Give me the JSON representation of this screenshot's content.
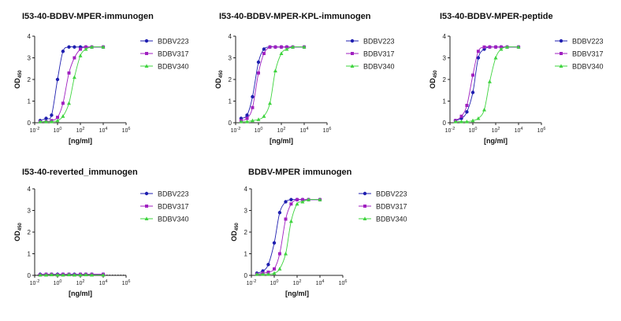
{
  "series_names": [
    "BDBV223",
    "BDBV317",
    "BDBV340"
  ],
  "series_colors": [
    "#1f1fb0",
    "#a020c0",
    "#3fd43f"
  ],
  "chart_data": [
    {
      "type": "line",
      "title": "I53-40-BDBV-MPER-immunogen",
      "xlabel": "[ng/ml]",
      "ylabel": "OD450",
      "xscale": "log",
      "xlim": [
        0.01,
        1000000
      ],
      "ylim": [
        0,
        4
      ],
      "xticks": [
        "10-2",
        "100",
        "102",
        "104",
        "106"
      ],
      "yticks": [
        "0",
        "1",
        "2",
        "3",
        "4"
      ],
      "legend_position": "right",
      "x": [
        0.03,
        0.1,
        0.3,
        1,
        3,
        10,
        30,
        100,
        300,
        1000,
        10000
      ],
      "series": [
        {
          "name": "BDBV223",
          "values": [
            0.1,
            0.2,
            0.35,
            2.0,
            3.3,
            3.5,
            3.5,
            3.5,
            3.5,
            3.5,
            3.5
          ]
        },
        {
          "name": "BDBV317",
          "values": [
            0.05,
            0.05,
            0.1,
            0.25,
            0.9,
            2.3,
            3.0,
            3.4,
            3.5,
            3.5,
            3.5
          ]
        },
        {
          "name": "BDBV340",
          "values": [
            0.05,
            0.05,
            0.05,
            0.1,
            0.3,
            0.9,
            2.1,
            3.1,
            3.4,
            3.5,
            3.5
          ]
        }
      ]
    },
    {
      "type": "line",
      "title": "I53-40-BDBV-MPER-KPL-immunogen",
      "xlabel": "[ng/ml]",
      "ylabel": "OD450",
      "xscale": "log",
      "xlim": [
        0.01,
        1000000
      ],
      "ylim": [
        0,
        4
      ],
      "xticks": [
        "10-2",
        "100",
        "102",
        "104",
        "106"
      ],
      "yticks": [
        "0",
        "1",
        "2",
        "3",
        "4"
      ],
      "legend_position": "right",
      "x": [
        0.03,
        0.1,
        0.3,
        1,
        3,
        10,
        30,
        100,
        300,
        1000,
        10000
      ],
      "series": [
        {
          "name": "BDBV223",
          "values": [
            0.2,
            0.35,
            1.2,
            2.8,
            3.4,
            3.5,
            3.5,
            3.5,
            3.5,
            3.5,
            3.5
          ]
        },
        {
          "name": "BDBV317",
          "values": [
            0.1,
            0.2,
            0.7,
            2.3,
            3.2,
            3.5,
            3.5,
            3.5,
            3.5,
            3.5,
            3.5
          ]
        },
        {
          "name": "BDBV340",
          "values": [
            0.05,
            0.05,
            0.1,
            0.15,
            0.3,
            0.9,
            2.4,
            3.2,
            3.4,
            3.5,
            3.5
          ]
        }
      ]
    },
    {
      "type": "line",
      "title": "I53-40-BDBV-MPER-peptide",
      "xlabel": "[ng/ml]",
      "ylabel": "OD450",
      "xscale": "log",
      "xlim": [
        0.01,
        1000000
      ],
      "ylim": [
        0,
        4
      ],
      "xticks": [
        "10-2",
        "100",
        "102",
        "104",
        "106"
      ],
      "yticks": [
        "0",
        "1",
        "2",
        "3",
        "4"
      ],
      "legend_position": "right",
      "x": [
        0.03,
        0.1,
        0.3,
        1,
        3,
        10,
        30,
        100,
        300,
        1000,
        10000
      ],
      "series": [
        {
          "name": "BDBV223",
          "values": [
            0.1,
            0.2,
            0.5,
            1.4,
            3.0,
            3.4,
            3.5,
            3.5,
            3.5,
            3.5,
            3.5
          ]
        },
        {
          "name": "BDBV317",
          "values": [
            0.1,
            0.3,
            0.8,
            2.2,
            3.3,
            3.5,
            3.5,
            3.5,
            3.5,
            3.5,
            3.5
          ]
        },
        {
          "name": "BDBV340",
          "values": [
            0.05,
            0.05,
            0.05,
            0.1,
            0.2,
            0.6,
            1.9,
            3.0,
            3.4,
            3.5,
            3.5
          ]
        }
      ]
    },
    {
      "type": "line",
      "title": "I53-40-reverted_immunogen",
      "xlabel": "[ng/ml]",
      "ylabel": "OD450",
      "xscale": "log",
      "xlim": [
        0.01,
        1000000
      ],
      "ylim": [
        0,
        4
      ],
      "xticks": [
        "10-2",
        "100",
        "102",
        "104",
        "106"
      ],
      "yticks": [
        "0",
        "1",
        "2",
        "3",
        "4"
      ],
      "legend_position": "right",
      "x": [
        0.03,
        0.1,
        0.3,
        1,
        3,
        10,
        30,
        100,
        300,
        1000,
        10000
      ],
      "series": [
        {
          "name": "BDBV223",
          "values": [
            0.05,
            0.05,
            0.05,
            0.05,
            0.05,
            0.05,
            0.05,
            0.05,
            0.05,
            0.05,
            0.05
          ]
        },
        {
          "name": "BDBV317",
          "values": [
            0.03,
            0.05,
            0.05,
            0.03,
            0.05,
            0.05,
            0.03,
            0.05,
            0.05,
            0.05,
            0.05
          ]
        },
        {
          "name": "BDBV340",
          "values": [
            0.02,
            0.02,
            0.03,
            0.02,
            0.02,
            0.03,
            0.02,
            0.02,
            0.03,
            0.02,
            0.02
          ]
        }
      ]
    },
    {
      "type": "line",
      "title": "BDBV-MPER immunogen",
      "xlabel": "[ng/ml]",
      "ylabel": "OD450",
      "xscale": "log",
      "xlim": [
        0.01,
        1000000
      ],
      "ylim": [
        0,
        4
      ],
      "xticks": [
        "10-2",
        "100",
        "102",
        "104",
        "106"
      ],
      "yticks": [
        "0",
        "1",
        "2",
        "3",
        "4"
      ],
      "legend_position": "right",
      "x": [
        0.03,
        0.1,
        0.3,
        1,
        3,
        10,
        30,
        100,
        300,
        1000,
        10000
      ],
      "series": [
        {
          "name": "BDBV223",
          "values": [
            0.1,
            0.2,
            0.5,
            1.5,
            2.9,
            3.4,
            3.5,
            3.5,
            3.5,
            3.5,
            3.5
          ]
        },
        {
          "name": "BDBV317",
          "values": [
            0.05,
            0.1,
            0.15,
            0.3,
            1.0,
            2.6,
            3.3,
            3.5,
            3.5,
            3.5,
            3.5
          ]
        },
        {
          "name": "BDBV340",
          "values": [
            0.05,
            0.05,
            0.05,
            0.1,
            0.3,
            1.0,
            2.5,
            3.3,
            3.4,
            3.5,
            3.5
          ]
        }
      ]
    }
  ]
}
